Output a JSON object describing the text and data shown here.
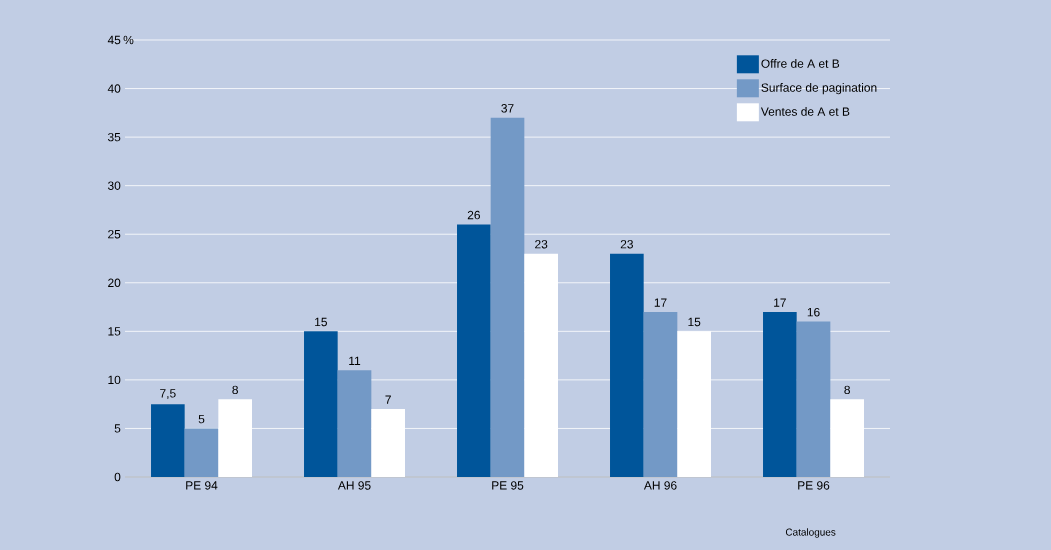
{
  "chart_data": {
    "type": "bar",
    "ylabel": "%",
    "categories": [
      "PE 94",
      "AH 95",
      "PE 95",
      "AH 96",
      "PE 96"
    ],
    "series": [
      {
        "name": "Offre de A et B",
        "color": "#00559a",
        "values": [
          7.5,
          15,
          26,
          23,
          17
        ],
        "value_labels": [
          "7,5",
          "15",
          "26",
          "23",
          "17"
        ]
      },
      {
        "name": "Surface de pagination",
        "color": "#7399c6",
        "values": [
          5,
          11,
          37,
          17,
          16
        ],
        "value_labels": [
          "5",
          "11",
          "37",
          "17",
          "16"
        ]
      },
      {
        "name": "Ventes de A et B",
        "color": "#ffffff",
        "values": [
          8,
          7,
          23,
          15,
          8
        ],
        "value_labels": [
          "8",
          "7",
          "23",
          "15",
          "8"
        ]
      }
    ],
    "ylim": [
      0,
      45
    ],
    "yticks": [
      0,
      5,
      10,
      15,
      20,
      25,
      30,
      35,
      40,
      45
    ],
    "grid": "y",
    "legend": "top right",
    "annotations": [
      "Catalogues"
    ]
  }
}
